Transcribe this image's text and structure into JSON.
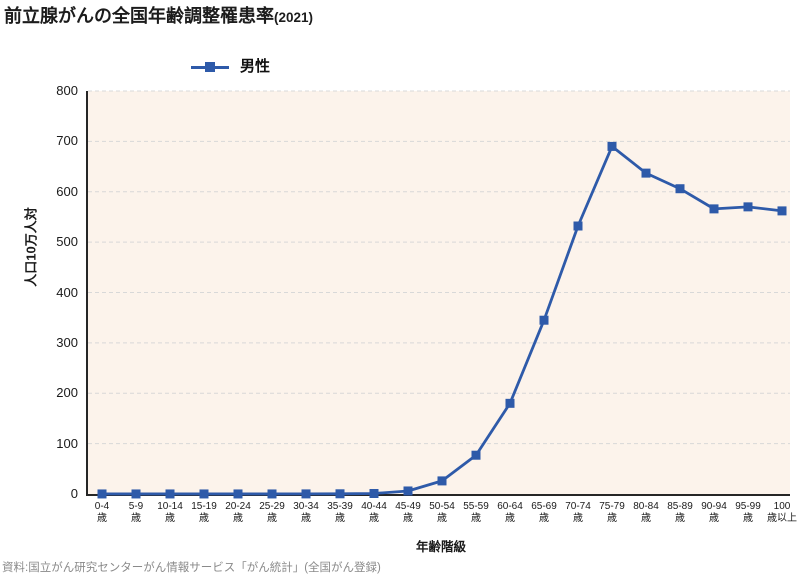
{
  "title": {
    "main": "前立腺がんの全国年齢調整罹患率",
    "suffix": "(2021)"
  },
  "legend": {
    "series_label": "男性"
  },
  "source": "資料:国立がん研究センターがん情報サービス「がん統計」(全国がん登録)",
  "colors": {
    "series_blue": "#2e5aa9",
    "plot_background": "#fcf3eb",
    "gridline": "#d8d8d8",
    "axis": "#262626",
    "source_text": "#8a8a8a"
  },
  "chart_data": {
    "type": "line",
    "title": "前立腺がんの全国年齢調整罹患率(2021)",
    "xlabel": "年齢階級",
    "ylabel": "人口10万人対",
    "ylim": [
      0,
      800
    ],
    "yticks": [
      0,
      100,
      200,
      300,
      400,
      500,
      600,
      700,
      800
    ],
    "grid": "horizontal-dashed",
    "legend_position": "top",
    "marker": "square",
    "categories": [
      {
        "label": "0-4",
        "unit": "歳"
      },
      {
        "label": "5-9",
        "unit": "歳"
      },
      {
        "label": "10-14",
        "unit": "歳"
      },
      {
        "label": "15-19",
        "unit": "歳"
      },
      {
        "label": "20-24",
        "unit": "歳"
      },
      {
        "label": "25-29",
        "unit": "歳"
      },
      {
        "label": "30-34",
        "unit": "歳"
      },
      {
        "label": "35-39",
        "unit": "歳"
      },
      {
        "label": "40-44",
        "unit": "歳"
      },
      {
        "label": "45-49",
        "unit": "歳"
      },
      {
        "label": "50-54",
        "unit": "歳"
      },
      {
        "label": "55-59",
        "unit": "歳"
      },
      {
        "label": "60-64",
        "unit": "歳"
      },
      {
        "label": "65-69",
        "unit": "歳"
      },
      {
        "label": "70-74",
        "unit": "歳"
      },
      {
        "label": "75-79",
        "unit": "歳"
      },
      {
        "label": "80-84",
        "unit": "歳"
      },
      {
        "label": "85-89",
        "unit": "歳"
      },
      {
        "label": "90-94",
        "unit": "歳"
      },
      {
        "label": "95-99",
        "unit": "歳"
      },
      {
        "label": "100",
        "unit": "歳以上"
      }
    ],
    "series": [
      {
        "name": "男性",
        "color": "#2e5aa9",
        "values": [
          0.1,
          0.1,
          0.1,
          0.1,
          0.1,
          0.1,
          0.2,
          0.4,
          1,
          6,
          26,
          77,
          180,
          345,
          532,
          690,
          637,
          606,
          566,
          570,
          562
        ]
      }
    ]
  }
}
